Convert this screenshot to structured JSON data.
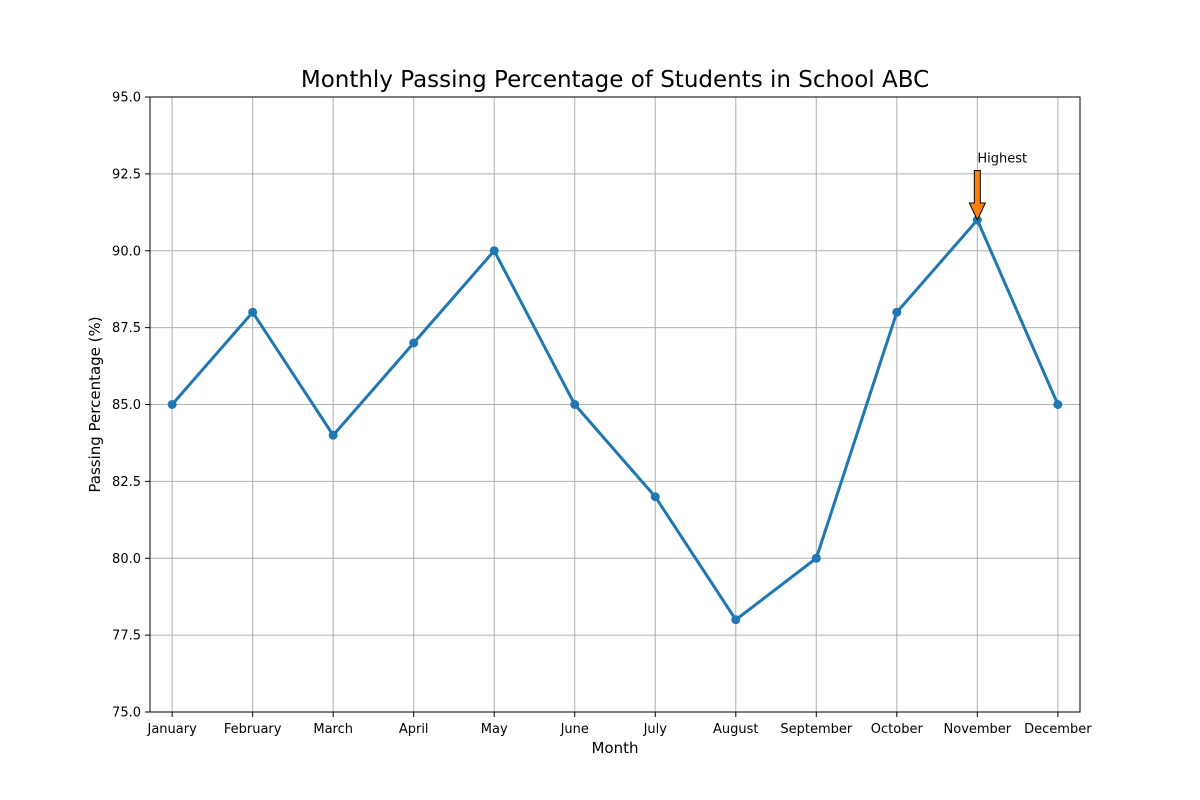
{
  "chart_data": {
    "type": "line",
    "title": "Monthly Passing Percentage of Students in School ABC",
    "xlabel": "Month",
    "ylabel": "Passing Percentage (%)",
    "categories": [
      "January",
      "February",
      "March",
      "April",
      "May",
      "June",
      "July",
      "August",
      "September",
      "October",
      "November",
      "December"
    ],
    "series": [
      {
        "values": [
          85,
          88,
          84,
          87,
          90,
          85,
          82,
          78,
          80,
          88,
          91,
          85
        ],
        "color": "#1f77b4",
        "marker": "circle"
      }
    ],
    "ylim": [
      75.0,
      95.0
    ],
    "yticks": [
      "75.0",
      "77.5",
      "80.0",
      "82.5",
      "85.0",
      "87.5",
      "90.0",
      "92.5",
      "95.0"
    ],
    "grid": true,
    "annotations": [
      {
        "text": "Highest",
        "category": "November",
        "value": 91,
        "text_value": 93,
        "arrow_color": "#ff7f0e"
      }
    ]
  }
}
